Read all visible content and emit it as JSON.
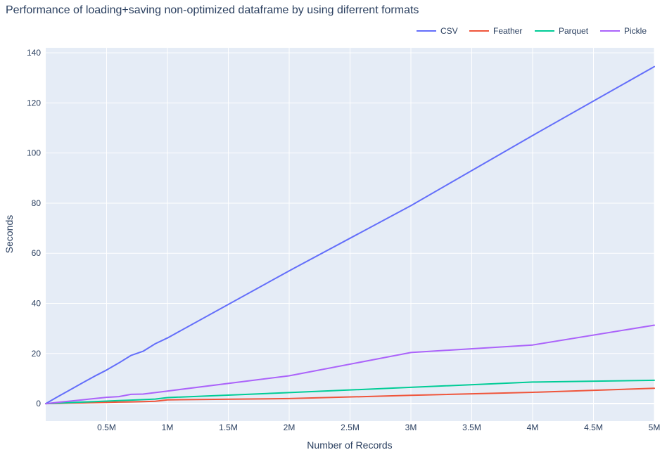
{
  "chart_data": {
    "type": "line",
    "title": "Performance of loading+saving non-optimized dataframe by using diferrent formats",
    "xlabel": "Number of Records",
    "ylabel": "Seconds",
    "xlim": [
      0,
      5000000
    ],
    "ylim": [
      -7,
      142
    ],
    "grid": true,
    "legend_position": "top-right",
    "plot_background": "#e5ecf6",
    "x_ticks": [
      {
        "value": 500000,
        "label": "0.5M"
      },
      {
        "value": 1000000,
        "label": "1M"
      },
      {
        "value": 1500000,
        "label": "1.5M"
      },
      {
        "value": 2000000,
        "label": "2M"
      },
      {
        "value": 2500000,
        "label": "2.5M"
      },
      {
        "value": 3000000,
        "label": "3M"
      },
      {
        "value": 3500000,
        "label": "3.5M"
      },
      {
        "value": 4000000,
        "label": "4M"
      },
      {
        "value": 4500000,
        "label": "4.5M"
      },
      {
        "value": 5000000,
        "label": "5M"
      }
    ],
    "y_ticks": [
      {
        "value": 0,
        "label": "0"
      },
      {
        "value": 20,
        "label": "20"
      },
      {
        "value": 40,
        "label": "40"
      },
      {
        "value": 60,
        "label": "60"
      },
      {
        "value": 80,
        "label": "80"
      },
      {
        "value": 100,
        "label": "100"
      },
      {
        "value": 120,
        "label": "120"
      },
      {
        "value": 140,
        "label": "140"
      }
    ],
    "series": [
      {
        "name": "CSV",
        "color": "#636efa",
        "x": [
          0,
          100000,
          200000,
          300000,
          400000,
          500000,
          600000,
          700000,
          800000,
          900000,
          1000000,
          2000000,
          3000000,
          4000000,
          5000000
        ],
        "y": [
          0,
          2.8,
          5.5,
          8.2,
          10.9,
          13.4,
          16.2,
          19.2,
          20.9,
          23.9,
          26.2,
          53.0,
          79.0,
          107.0,
          134.5
        ]
      },
      {
        "name": "Feather",
        "color": "#ef553b",
        "x": [
          0,
          100000,
          200000,
          300000,
          400000,
          500000,
          600000,
          700000,
          800000,
          900000,
          1000000,
          2000000,
          3000000,
          4000000,
          5000000
        ],
        "y": [
          0,
          0.1,
          0.2,
          0.3,
          0.4,
          0.5,
          0.6,
          0.7,
          0.8,
          0.9,
          1.5,
          2.0,
          3.3,
          4.5,
          6.1
        ]
      },
      {
        "name": "Parquet",
        "color": "#00cc96",
        "x": [
          0,
          100000,
          200000,
          300000,
          400000,
          500000,
          600000,
          700000,
          800000,
          900000,
          1000000,
          2000000,
          3000000,
          4000000,
          5000000
        ],
        "y": [
          0,
          0.2,
          0.4,
          0.6,
          0.8,
          1.0,
          1.2,
          1.4,
          1.6,
          1.8,
          2.4,
          4.4,
          6.5,
          8.6,
          9.3
        ]
      },
      {
        "name": "Pickle",
        "color": "#ab63fa",
        "x": [
          0,
          100000,
          200000,
          300000,
          400000,
          500000,
          600000,
          700000,
          800000,
          900000,
          1000000,
          2000000,
          3000000,
          4000000,
          5000000
        ],
        "y": [
          0,
          0.5,
          1.0,
          1.5,
          2.0,
          2.5,
          2.8,
          3.7,
          3.8,
          4.4,
          5.0,
          11.1,
          20.4,
          23.4,
          31.3
        ]
      }
    ]
  }
}
